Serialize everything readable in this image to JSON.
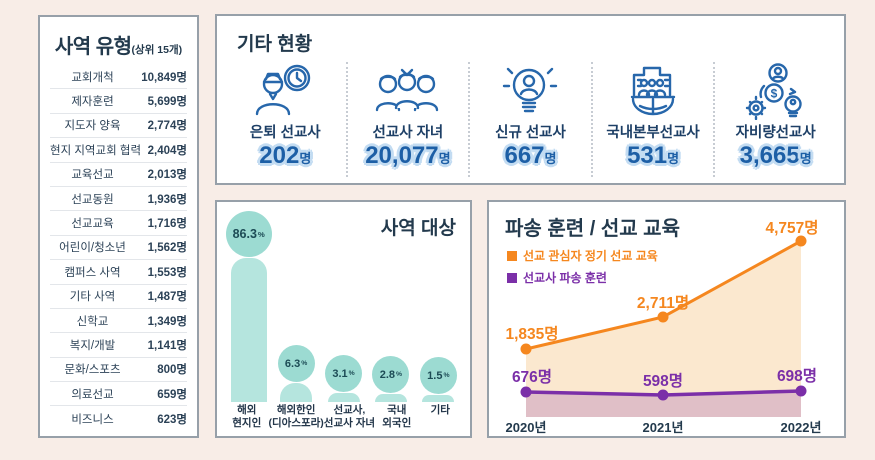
{
  "colors": {
    "page_bg": "#f8ede7",
    "panel_border": "#97a0a9",
    "dark_navy": "#233a4d",
    "icon_blue": "#2767ab",
    "number_blue": "#1d5fa6",
    "number_halo": "#c3dcf2",
    "bar_teal": "#b5e5de",
    "bubble_teal": "#9cdbd2",
    "orange": "#f5871f",
    "orange_fill": "#fbe8cf",
    "purple": "#7b2fa8",
    "purple_fill": "#e0bfc7"
  },
  "ministry_types": {
    "title": "사역 유형",
    "title_suffix": "(상위 15개)",
    "rows": [
      {
        "label": "교회개척",
        "value": "10,849명"
      },
      {
        "label": "제자훈련",
        "value": "5,699명"
      },
      {
        "label": "지도자 양육",
        "value": "2,774명"
      },
      {
        "label": "현지 지역교회 협력",
        "value": "2,404명"
      },
      {
        "label": "교육선교",
        "value": "2,013명"
      },
      {
        "label": "선교동원",
        "value": "1,936명"
      },
      {
        "label": "선교교육",
        "value": "1,716명"
      },
      {
        "label": "어린이/청소년",
        "value": "1,562명"
      },
      {
        "label": "캠퍼스 사역",
        "value": "1,553명"
      },
      {
        "label": "기타 사역",
        "value": "1,487명"
      },
      {
        "label": "신학교",
        "value": "1,349명"
      },
      {
        "label": "복지/개발",
        "value": "1,141명"
      },
      {
        "label": "문화/스포츠",
        "value": "800명"
      },
      {
        "label": "의료선교",
        "value": "659명"
      },
      {
        "label": "비즈니스",
        "value": "623명"
      }
    ]
  },
  "other_status": {
    "title": "기타 현황",
    "items": [
      {
        "icon": "retired-missionary-icon",
        "label": "은퇴 선교사",
        "value": "202",
        "unit": "명"
      },
      {
        "icon": "missionary-children-icon",
        "label": "선교사 자녀",
        "value": "20,077",
        "unit": "명"
      },
      {
        "icon": "new-missionary-icon",
        "label": "신규 선교사",
        "value": "667",
        "unit": "명"
      },
      {
        "icon": "hq-missionary-icon",
        "label": "국내본부선교사",
        "value": "531",
        "unit": "명"
      },
      {
        "icon": "self-support-missionary-icon",
        "label": "자비량선교사",
        "value": "3,665",
        "unit": "명"
      }
    ]
  },
  "chart_data": [
    {
      "type": "bar",
      "title": "사역 대상",
      "categories": [
        "해외 현지인",
        "해외한인 (디아스포라)",
        "선교사, 선교사 자녀",
        "국내 외국인",
        "기타"
      ],
      "category_lines": [
        [
          "해외",
          "현지인"
        ],
        [
          "해외한인",
          "(디아스포라)"
        ],
        [
          "선교사,",
          "선교사 자녀"
        ],
        [
          "국내",
          "외국인"
        ],
        [
          "기타"
        ]
      ],
      "values": [
        86.3,
        6.3,
        3.1,
        2.8,
        1.5
      ],
      "value_labels": [
        "86.3",
        "6.3",
        "3.1",
        "2.8",
        "1.5"
      ],
      "unit": "%",
      "ylim": [
        0,
        100
      ],
      "grid": false,
      "legend_position": "none"
    },
    {
      "type": "line",
      "title": "파송 훈련 / 선교 교육",
      "x": [
        "2020년",
        "2021년",
        "2022년"
      ],
      "series": [
        {
          "name": "선교 관심자 정기 선교 교육",
          "values": [
            1835,
            2711,
            4757
          ],
          "value_labels": [
            "1,835명",
            "2,711명",
            "4,757명"
          ],
          "color": "#f5871f",
          "fill": "#fbe8cf"
        },
        {
          "name": "선교사 파송 훈련",
          "values": [
            676,
            598,
            698
          ],
          "value_labels": [
            "676명",
            "598명",
            "698명"
          ],
          "color": "#7b2fa8",
          "fill": "#e0bfc7"
        }
      ],
      "ylim": [
        0,
        5000
      ],
      "grid": false,
      "area": true,
      "legend_position": "top-left"
    }
  ]
}
